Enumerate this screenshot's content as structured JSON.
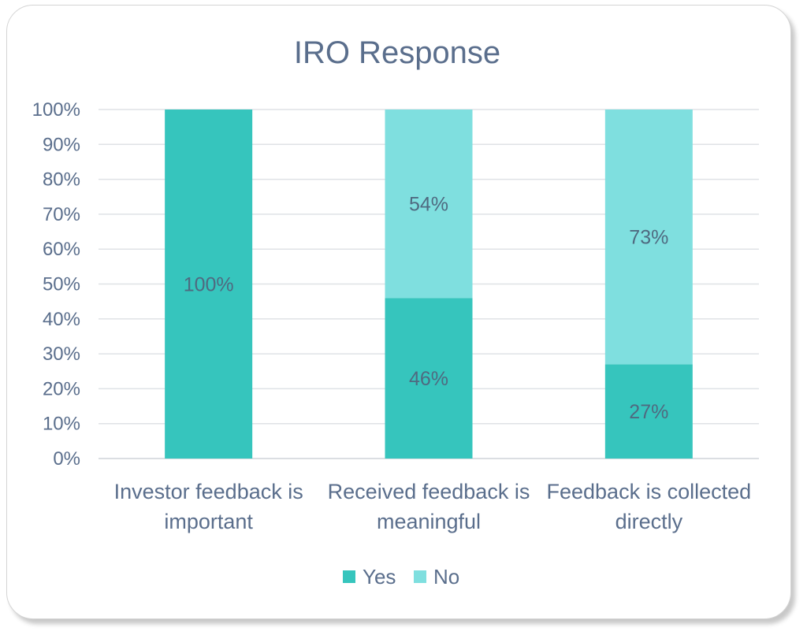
{
  "chart_data": {
    "type": "bar",
    "stacked": true,
    "title": "IRO Response",
    "categories": [
      [
        "Investor feedback is",
        "important"
      ],
      [
        "Received feedback is",
        "meaningful"
      ],
      [
        "Feedback is collected",
        "directly"
      ]
    ],
    "series": [
      {
        "name": "Yes",
        "color": "#36c5bd",
        "values": [
          100,
          46,
          27
        ],
        "labels": [
          "100%",
          "46%",
          "27%"
        ]
      },
      {
        "name": "No",
        "color": "#7fdfdf",
        "values": [
          0,
          54,
          73
        ],
        "labels": [
          "",
          "54%",
          "73%"
        ]
      }
    ],
    "ylim": [
      0,
      100
    ],
    "yticks": [
      "0%",
      "10%",
      "20%",
      "30%",
      "40%",
      "50%",
      "60%",
      "70%",
      "80%",
      "90%",
      "100%"
    ],
    "grid": true,
    "legend": "bottom"
  }
}
